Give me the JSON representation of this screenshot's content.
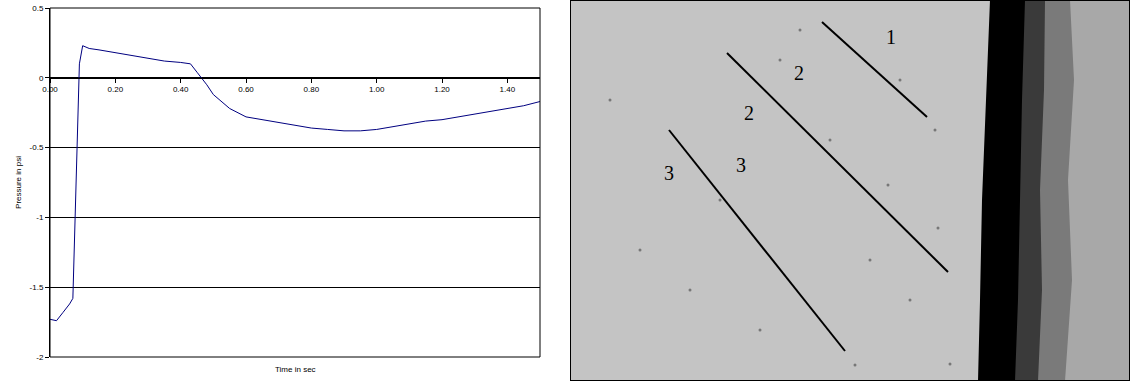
{
  "chart_data": {
    "type": "line",
    "x_label": "Time in sec",
    "y_label": "Pressure in psi",
    "x": [
      0,
      0.02,
      0.04,
      0.06,
      0.07,
      0.08,
      0.09,
      0.1,
      0.12,
      0.15,
      0.2,
      0.25,
      0.3,
      0.35,
      0.4,
      0.43,
      0.45,
      0.48,
      0.5,
      0.55,
      0.6,
      0.65,
      0.7,
      0.75,
      0.8,
      0.85,
      0.9,
      0.95,
      1.0,
      1.05,
      1.1,
      1.15,
      1.2,
      1.25,
      1.3,
      1.35,
      1.4,
      1.45,
      1.5
    ],
    "values": [
      -1.73,
      -1.74,
      -1.68,
      -1.62,
      -1.58,
      -0.8,
      0.1,
      0.23,
      0.21,
      0.2,
      0.18,
      0.16,
      0.14,
      0.12,
      0.11,
      0.1,
      0.04,
      -0.05,
      -0.12,
      -0.22,
      -0.28,
      -0.3,
      -0.32,
      -0.34,
      -0.36,
      -0.37,
      -0.38,
      -0.38,
      -0.37,
      -0.35,
      -0.33,
      -0.31,
      -0.3,
      -0.28,
      -0.26,
      -0.24,
      -0.22,
      -0.2,
      -0.17
    ],
    "color": "#000080",
    "xlim": [
      0,
      1.5
    ],
    "ylim": [
      -2,
      0.5
    ],
    "xticks": [
      {
        "value": 0,
        "label": "0.00"
      },
      {
        "value": 0.2,
        "label": "0.20"
      },
      {
        "value": 0.4,
        "label": "0.40"
      },
      {
        "value": 0.6,
        "label": "0.60"
      },
      {
        "value": 0.8,
        "label": "0.80"
      },
      {
        "value": 1.0,
        "label": "1.00"
      },
      {
        "value": 1.2,
        "label": "1.20"
      },
      {
        "value": 1.4,
        "label": "1.40"
      }
    ],
    "yticks": [
      -2,
      -1.5,
      -1,
      -0.5,
      0,
      0.5
    ],
    "grid": true
  },
  "image_panel": {
    "labels": [
      "1",
      "2",
      "2",
      "3",
      "3"
    ]
  }
}
